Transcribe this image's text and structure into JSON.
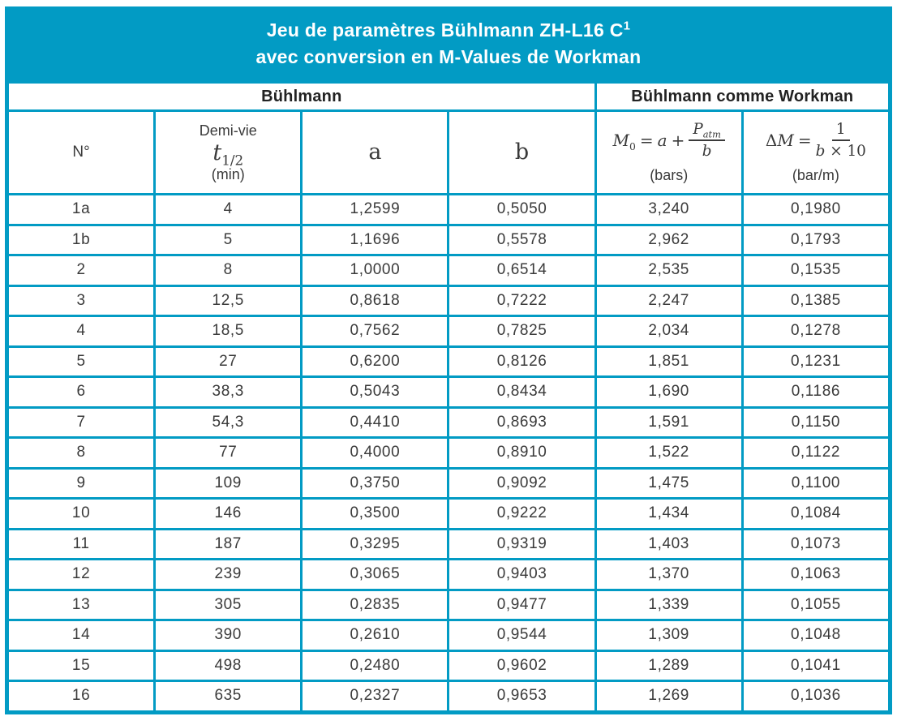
{
  "accent_color": "#029BC4",
  "text_color": "#3A3A3A",
  "title": {
    "line1": "Jeu de paramètres Bühlmann ZH-L16 C",
    "footnote_marker": "1",
    "line2": "avec conversion en M-Values de Workman"
  },
  "groups": {
    "left": "Bühlmann",
    "right": "Bühlmann comme Workman"
  },
  "headers": {
    "n": "N°",
    "half_life": {
      "label": "Demi-vie",
      "symbol": "t",
      "subscript": "1/2",
      "unit": "(min)"
    },
    "a": "a",
    "b": "b",
    "m0": {
      "lhs": "M",
      "lhs_sub": "0",
      "eq": "=",
      "term": "a",
      "plus": "+",
      "frac_num": "P",
      "frac_num_sub": "atm",
      "frac_den": "b",
      "unit": "(bars)"
    },
    "dm": {
      "delta": "Δ",
      "lhs": "M",
      "eq": "=",
      "frac_num": "1",
      "frac_den_var": "b",
      "frac_den_rest": " × 10",
      "unit": "(bar/m)"
    }
  },
  "table": {
    "columns": [
      "n",
      "half_life",
      "a",
      "b",
      "m0",
      "dm"
    ],
    "rows": [
      {
        "n": "1a",
        "half_life": "4",
        "a": "1,2599",
        "b": "0,5050",
        "m0": "3,240",
        "dm": "0,1980"
      },
      {
        "n": "1b",
        "half_life": "5",
        "a": "1,1696",
        "b": "0,5578",
        "m0": "2,962",
        "dm": "0,1793"
      },
      {
        "n": "2",
        "half_life": "8",
        "a": "1,0000",
        "b": "0,6514",
        "m0": "2,535",
        "dm": "0,1535"
      },
      {
        "n": "3",
        "half_life": "12,5",
        "a": "0,8618",
        "b": "0,7222",
        "m0": "2,247",
        "dm": "0,1385"
      },
      {
        "n": "4",
        "half_life": "18,5",
        "a": "0,7562",
        "b": "0,7825",
        "m0": "2,034",
        "dm": "0,1278"
      },
      {
        "n": "5",
        "half_life": "27",
        "a": "0,6200",
        "b": "0,8126",
        "m0": "1,851",
        "dm": "0,1231"
      },
      {
        "n": "6",
        "half_life": "38,3",
        "a": "0,5043",
        "b": "0,8434",
        "m0": "1,690",
        "dm": "0,1186"
      },
      {
        "n": "7",
        "half_life": "54,3",
        "a": "0,4410",
        "b": "0,8693",
        "m0": "1,591",
        "dm": "0,1150"
      },
      {
        "n": "8",
        "half_life": "77",
        "a": "0,4000",
        "b": "0,8910",
        "m0": "1,522",
        "dm": "0,1122"
      },
      {
        "n": "9",
        "half_life": "109",
        "a": "0,3750",
        "b": "0,9092",
        "m0": "1,475",
        "dm": "0,1100"
      },
      {
        "n": "10",
        "half_life": "146",
        "a": "0,3500",
        "b": "0,9222",
        "m0": "1,434",
        "dm": "0,1084"
      },
      {
        "n": "11",
        "half_life": "187",
        "a": "0,3295",
        "b": "0,9319",
        "m0": "1,403",
        "dm": "0,1073"
      },
      {
        "n": "12",
        "half_life": "239",
        "a": "0,3065",
        "b": "0,9403",
        "m0": "1,370",
        "dm": "0,1063"
      },
      {
        "n": "13",
        "half_life": "305",
        "a": "0,2835",
        "b": "0,9477",
        "m0": "1,339",
        "dm": "0,1055"
      },
      {
        "n": "14",
        "half_life": "390",
        "a": "0,2610",
        "b": "0,9544",
        "m0": "1,309",
        "dm": "0,1048"
      },
      {
        "n": "15",
        "half_life": "498",
        "a": "0,2480",
        "b": "0,9602",
        "m0": "1,289",
        "dm": "0,1041"
      },
      {
        "n": "16",
        "half_life": "635",
        "a": "0,2327",
        "b": "0,9653",
        "m0": "1,269",
        "dm": "0,1036"
      }
    ]
  }
}
